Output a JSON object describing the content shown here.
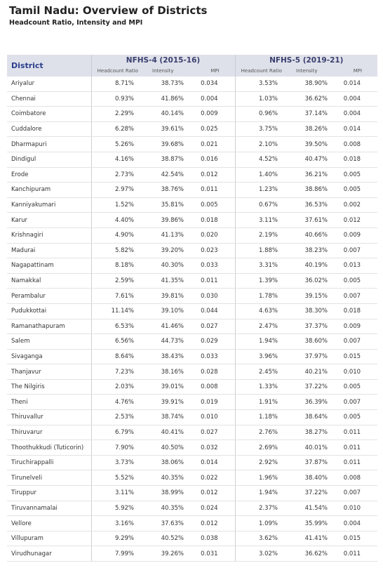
{
  "header": {
    "title": "Tamil Nadu: Overview of Districts",
    "subtitle": "Headcount Ratio, Intensity and MPI"
  },
  "table": {
    "district_label": "District",
    "groups": [
      {
        "label": "NFHS-4 (2015-16)",
        "columns": [
          "Headcount Ratio",
          "Intensity",
          "MPI"
        ]
      },
      {
        "label": "NFHS-5 (2019-21)",
        "columns": [
          "Headcount Ratio",
          "Intensity",
          "MPI"
        ]
      }
    ],
    "rows": [
      [
        "Ariyalur",
        "8.71%",
        "38.73%",
        "0.034",
        "3.53%",
        "38.90%",
        "0.014"
      ],
      [
        "Chennai",
        "0.93%",
        "41.86%",
        "0.004",
        "1.03%",
        "36.62%",
        "0.004"
      ],
      [
        "Coimbatore",
        "2.29%",
        "40.14%",
        "0.009",
        "0.96%",
        "37.14%",
        "0.004"
      ],
      [
        "Cuddalore",
        "6.28%",
        "39.61%",
        "0.025",
        "3.75%",
        "38.26%",
        "0.014"
      ],
      [
        "Dharmapuri",
        "5.26%",
        "39.68%",
        "0.021",
        "2.10%",
        "39.50%",
        "0.008"
      ],
      [
        "Dindigul",
        "4.16%",
        "38.87%",
        "0.016",
        "4.52%",
        "40.47%",
        "0.018"
      ],
      [
        "Erode",
        "2.73%",
        "42.54%",
        "0.012",
        "1.40%",
        "36.21%",
        "0.005"
      ],
      [
        "Kanchipuram",
        "2.97%",
        "38.76%",
        "0.011",
        "1.23%",
        "38.86%",
        "0.005"
      ],
      [
        "Kanniyakumari",
        "1.52%",
        "35.81%",
        "0.005",
        "0.67%",
        "36.53%",
        "0.002"
      ],
      [
        "Karur",
        "4.40%",
        "39.86%",
        "0.018",
        "3.11%",
        "37.61%",
        "0.012"
      ],
      [
        "Krishnagiri",
        "4.90%",
        "41.13%",
        "0.020",
        "2.19%",
        "40.66%",
        "0.009"
      ],
      [
        "Madurai",
        "5.82%",
        "39.20%",
        "0.023",
        "1.88%",
        "38.23%",
        "0.007"
      ],
      [
        "Nagapattinam",
        "8.18%",
        "40.30%",
        "0.033",
        "3.31%",
        "40.19%",
        "0.013"
      ],
      [
        "Namakkal",
        "2.59%",
        "41.35%",
        "0.011",
        "1.39%",
        "36.02%",
        "0.005"
      ],
      [
        "Perambalur",
        "7.61%",
        "39.81%",
        "0.030",
        "1.78%",
        "39.15%",
        "0.007"
      ],
      [
        "Pudukkottai",
        "11.14%",
        "39.10%",
        "0.044",
        "4.63%",
        "38.30%",
        "0.018"
      ],
      [
        "Ramanathapuram",
        "6.53%",
        "41.46%",
        "0.027",
        "2.47%",
        "37.37%",
        "0.009"
      ],
      [
        "Salem",
        "6.56%",
        "44.73%",
        "0.029",
        "1.94%",
        "38.60%",
        "0.007"
      ],
      [
        "Sivaganga",
        "8.64%",
        "38.43%",
        "0.033",
        "3.96%",
        "37.97%",
        "0.015"
      ],
      [
        "Thanjavur",
        "7.23%",
        "38.16%",
        "0.028",
        "2.45%",
        "40.21%",
        "0.010"
      ],
      [
        "The Nilgiris",
        "2.03%",
        "39.01%",
        "0.008",
        "1.33%",
        "37.22%",
        "0.005"
      ],
      [
        "Theni",
        "4.76%",
        "39.91%",
        "0.019",
        "1.91%",
        "36.39%",
        "0.007"
      ],
      [
        "Thiruvallur",
        "2.53%",
        "38.74%",
        "0.010",
        "1.18%",
        "38.64%",
        "0.005"
      ],
      [
        "Thiruvarur",
        "6.79%",
        "40.41%",
        "0.027",
        "2.76%",
        "38.27%",
        "0.011"
      ],
      [
        "Thoothukkudi (Tuticorin)",
        "7.90%",
        "40.50%",
        "0.032",
        "2.69%",
        "40.01%",
        "0.011"
      ],
      [
        "Tiruchirappalli",
        "3.73%",
        "38.06%",
        "0.014",
        "2.92%",
        "37.87%",
        "0.011"
      ],
      [
        "Tirunelveli",
        "5.52%",
        "40.35%",
        "0.022",
        "1.96%",
        "38.40%",
        "0.008"
      ],
      [
        "Tiruppur",
        "3.11%",
        "38.99%",
        "0.012",
        "1.94%",
        "37.22%",
        "0.007"
      ],
      [
        "Tiruvannamalai",
        "5.92%",
        "40.35%",
        "0.024",
        "2.37%",
        "41.54%",
        "0.010"
      ],
      [
        "Vellore",
        "3.16%",
        "37.63%",
        "0.012",
        "1.09%",
        "35.99%",
        "0.004"
      ],
      [
        "Villupuram",
        "9.29%",
        "40.52%",
        "0.038",
        "3.62%",
        "41.41%",
        "0.015"
      ],
      [
        "Virudhunagar",
        "7.99%",
        "39.26%",
        "0.031",
        "3.02%",
        "36.62%",
        "0.011"
      ]
    ]
  }
}
